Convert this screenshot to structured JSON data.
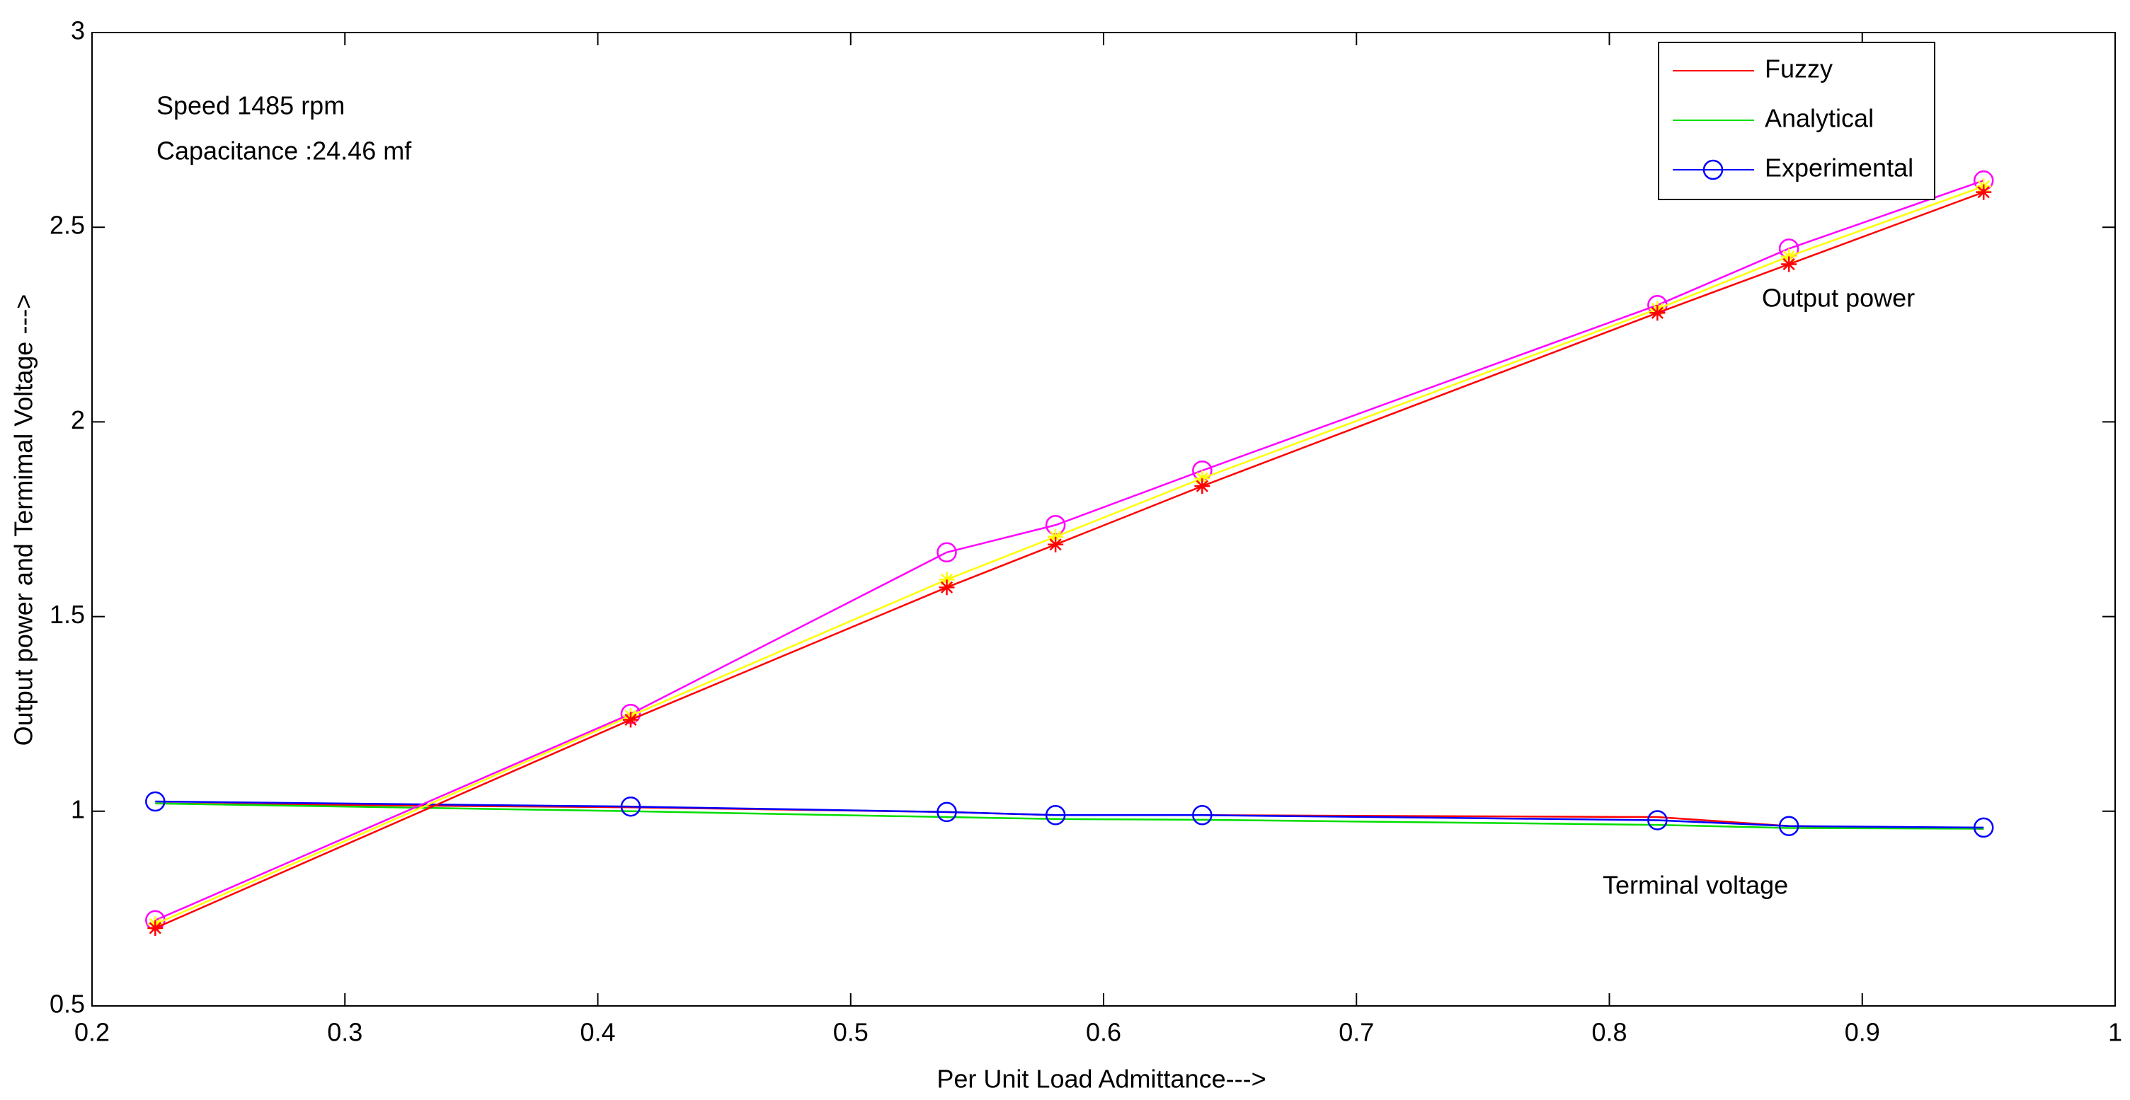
{
  "chart_data": {
    "type": "line",
    "xlabel": "Per Unit Load Admittance--->",
    "ylabel": "Output power and Termimal Voltage --->",
    "annotations": [
      "Speed 1485 rpm",
      "Capacitance :24.46 mf",
      "Output power",
      "Terminal voltage"
    ],
    "x": [
      0.225,
      0.413,
      0.538,
      0.581,
      0.639,
      0.819,
      0.871,
      0.948
    ],
    "xlim": [
      0.2,
      1
    ],
    "xticks": [
      0.2,
      0.3,
      0.4,
      0.5,
      0.6,
      0.7,
      0.8,
      0.9,
      1
    ],
    "ylim": [
      0.5,
      3
    ],
    "yticks": [
      0.5,
      1,
      1.5,
      2,
      2.5,
      3
    ],
    "grid": false,
    "legend": "upper right",
    "series": [
      {
        "name": "Fuzzy",
        "color": "#ff0000",
        "marker": "none",
        "values": [
          1.02,
          1.01,
          0.998,
          0.99,
          0.99,
          0.985,
          0.962,
          0.955
        ]
      },
      {
        "name": "Analytical",
        "color": "#00dd00",
        "marker": "none",
        "values": [
          1.02,
          1.0,
          0.985,
          0.98,
          0.978,
          0.965,
          0.957,
          0.955
        ]
      },
      {
        "name": "Experimental",
        "color": "#0000ff",
        "marker": "circle",
        "values": [
          1.025,
          1.012,
          0.998,
          0.99,
          0.99,
          0.977,
          0.962,
          0.958
        ]
      },
      {
        "color": "#ff00ff",
        "marker": "circle",
        "values": [
          0.72,
          1.25,
          1.665,
          1.735,
          1.875,
          2.3,
          2.445,
          2.62
        ]
      },
      {
        "color": "#ffff00",
        "marker": "star",
        "values": [
          0.71,
          1.245,
          1.595,
          1.705,
          1.855,
          2.29,
          2.425,
          2.605
        ]
      },
      {
        "color": "#ff0000",
        "marker": "star",
        "values": [
          0.7,
          1.235,
          1.575,
          1.685,
          1.835,
          2.28,
          2.405,
          2.59
        ]
      }
    ]
  }
}
